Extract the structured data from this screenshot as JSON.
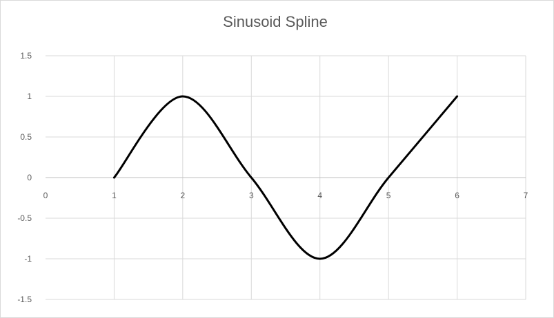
{
  "chart_data": {
    "type": "line",
    "title": "Sinusoid  Spline",
    "xlabel": "",
    "ylabel": "",
    "xlim": [
      0,
      7
    ],
    "ylim": [
      -1.5,
      1.5
    ],
    "x_ticks": [
      "0",
      "1",
      "2",
      "3",
      "4",
      "5",
      "6",
      "7"
    ],
    "y_ticks": [
      "1.5",
      "1",
      "0.5",
      "0",
      "-0.5",
      "-1",
      "-1.5"
    ],
    "grid": true,
    "legend": "none",
    "smooth": true,
    "series": [
      {
        "color": "#000000",
        "x": [
          1,
          2,
          3,
          4,
          5,
          6
        ],
        "y": [
          0,
          1,
          0,
          -1,
          0,
          1
        ]
      }
    ]
  }
}
